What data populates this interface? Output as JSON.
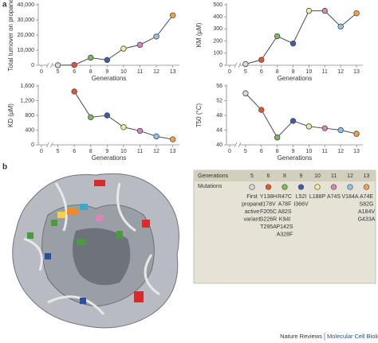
{
  "chart_data": [
    {
      "type": "line",
      "y_label": "Total turnover on propane",
      "x_label": "Generations",
      "categories": [
        "0",
        "5",
        "6",
        "8",
        "9",
        "10",
        "11",
        "12",
        "13"
      ],
      "values": [
        null,
        0,
        200,
        5000,
        3500,
        11000,
        13500,
        19000,
        33000
      ],
      "marker_colors": [
        "#ffffff",
        "#d9d9d9",
        "#e8542f",
        "#7dbb5a",
        "#3f5ba9",
        "#f3ec9a",
        "#d886b8",
        "#8fc3e8",
        "#f4a24a"
      ],
      "color": "#4a4a4a",
      "axis_break": true,
      "ylim": [
        0,
        40000
      ],
      "yticks": [
        0,
        {
          "value": 10000,
          "label": "10,000"
        },
        {
          "value": 20000,
          "label": "20,000"
        },
        {
          "value": 30000,
          "label": "30,000"
        },
        {
          "value": 40000,
          "label": "40,000"
        }
      ]
    },
    {
      "type": "line",
      "y_label": "KM (µM)",
      "x_label": "Generations",
      "categories": [
        "0",
        "5",
        "6",
        "8",
        "9",
        "10",
        "11",
        "12",
        "13"
      ],
      "values": [
        null,
        10,
        45,
        240,
        180,
        450,
        450,
        320,
        430
      ],
      "marker_colors": [
        "#ffffff",
        "#d9d9d9",
        "#e8542f",
        "#7dbb5a",
        "#3f5ba9",
        "#f3ec9a",
        "#d886b8",
        "#8fc3e8",
        "#f4a24a"
      ],
      "color": "#4a4a4a",
      "axis_break": true,
      "ylim": [
        0,
        500
      ],
      "yticks": [
        0,
        100,
        200,
        300,
        400,
        500
      ]
    },
    {
      "type": "line",
      "y_label": "KD (µM)",
      "x_label": "Generations",
      "categories": [
        "0",
        "5",
        "6",
        "8",
        "9",
        "10",
        "11",
        "12",
        "13"
      ],
      "values": [
        null,
        null,
        1450,
        750,
        800,
        480,
        380,
        230,
        150
      ],
      "marker_colors": [
        "#ffffff",
        "#d9d9d9",
        "#e8542f",
        "#7dbb5a",
        "#3f5ba9",
        "#f3ec9a",
        "#d886b8",
        "#8fc3e8",
        "#f4a24a"
      ],
      "color": "#4a4a4a",
      "axis_break": true,
      "ylim": [
        0,
        1600
      ],
      "yticks": [
        0,
        400,
        800,
        {
          "value": 1200,
          "label": "1,200"
        },
        {
          "value": 1600,
          "label": "1,600"
        }
      ]
    },
    {
      "type": "line",
      "y_label": "T50 (°C)",
      "x_label": "Generations",
      "categories": [
        "0",
        "5",
        "6",
        "8",
        "9",
        "10",
        "11",
        "12",
        "13"
      ],
      "values": [
        null,
        54,
        49.5,
        42,
        46.5,
        45,
        44.5,
        44,
        43
      ],
      "marker_colors": [
        "#ffffff",
        "#d9d9d9",
        "#e8542f",
        "#7dbb5a",
        "#3f5ba9",
        "#f3ec9a",
        "#d886b8",
        "#8fc3e8",
        "#f4a24a"
      ],
      "color": "#4a4a4a",
      "axis_break": true,
      "ylim": [
        40,
        56
      ],
      "yticks": [
        40,
        44,
        48,
        52,
        56
      ]
    }
  ],
  "panel_labels": [
    "a",
    "b"
  ],
  "table": {
    "header_label": "Generations",
    "generations": [
      "5",
      "6",
      "8",
      "9",
      "10",
      "11",
      "12",
      "13"
    ],
    "mutations_label": "Mutations",
    "colors": [
      "#d9d9d9",
      "#e8542f",
      "#7dbb5a",
      "#3f5ba9",
      "#f3ec9a",
      "#d886b8",
      "#8fc3e8",
      "#f4a24a"
    ],
    "mutations": [
      [
        "First",
        "propane",
        "active",
        "variant"
      ],
      [
        "Y138H",
        "I178V",
        "F205C",
        "S226R",
        "T295A"
      ],
      [
        "R47C",
        "A78F",
        "A82S",
        "K94I",
        "P142S",
        "A328F"
      ],
      [
        "L52I",
        "I366V"
      ],
      [
        "L188P"
      ],
      [
        "A74S"
      ],
      [
        "V184A"
      ],
      [
        "A74E",
        "S82G",
        "A184V",
        "G433A"
      ]
    ]
  },
  "footer": {
    "journal": "Nature Reviews",
    "section": "Molecular Cell Biology"
  }
}
